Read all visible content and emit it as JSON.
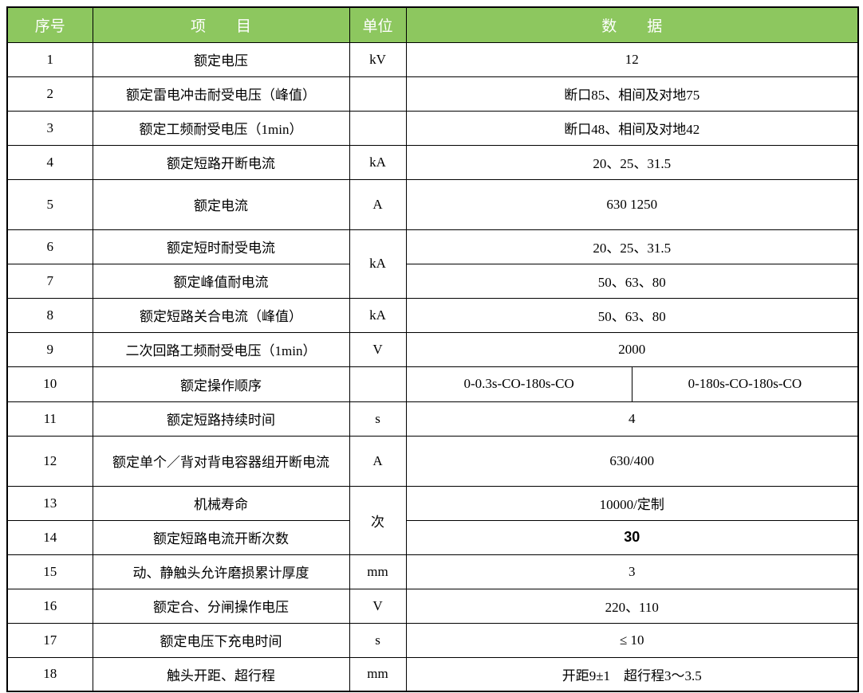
{
  "colors": {
    "header_bg": "#8DC75F",
    "header_text": "#FFFFFF",
    "border": "#000000"
  },
  "header": {
    "num": "序号",
    "item": "项　　目",
    "unit": "单位",
    "data": "数　　据"
  },
  "rows": [
    {
      "num": "1",
      "item": "额定电压",
      "unit": "kV",
      "data": "12"
    },
    {
      "num": "2",
      "item": "额定雷电冲击耐受电压（峰值）",
      "unit": "",
      "data": "断口85、相间及对地75"
    },
    {
      "num": "3",
      "item": "额定工频耐受电压（1min）",
      "unit": "",
      "data": "断口48、相间及对地42"
    },
    {
      "num": "4",
      "item": "额定短路开断电流",
      "unit": "kA",
      "data": "20、25、31.5"
    },
    {
      "num": "5",
      "item": "额定电流",
      "unit": "A",
      "data": "630 1250"
    },
    {
      "num": "6",
      "item": "额定短时耐受电流",
      "unit": "kA",
      "data": "20、25、31.5"
    },
    {
      "num": "7",
      "item": "额定峰值耐电流",
      "data": "50、63、80"
    },
    {
      "num": "8",
      "item": "额定短路关合电流（峰值）",
      "unit": "kA",
      "data": "50、63、80"
    },
    {
      "num": "9",
      "item": "二次回路工频耐受电压（1min）",
      "unit": "V",
      "data": "2000"
    },
    {
      "num": "10",
      "item": "额定操作顺序",
      "unit": "",
      "data_left": "0-0.3s-CO-180s-CO",
      "data_right": "0-180s-CO-180s-CO"
    },
    {
      "num": "11",
      "item": "额定短路持续时间",
      "unit": "s",
      "data": "4"
    },
    {
      "num": "12",
      "item": "额定单个／背对背电容器组开断电流",
      "unit": "A",
      "data": "630/400"
    },
    {
      "num": "13",
      "item": "机械寿命",
      "unit": "次",
      "data": "10000/定制"
    },
    {
      "num": "14",
      "item": "额定短路电流开断次数",
      "data": "30"
    },
    {
      "num": "15",
      "item": "动、静触头允许磨损累计厚度",
      "unit": "mm",
      "data": "3"
    },
    {
      "num": "16",
      "item": "额定合、分闸操作电压",
      "unit": "V",
      "data": "220、110"
    },
    {
      "num": "17",
      "item": "额定电压下充电时间",
      "unit": "s",
      "data": "≤ 10"
    },
    {
      "num": "18",
      "item": "触头开距、超行程",
      "unit": "mm",
      "data": "开距9±1　超行程3～3.5"
    }
  ]
}
